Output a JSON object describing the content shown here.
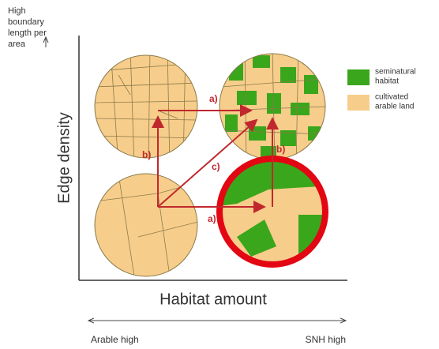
{
  "y_axis_note": [
    "High",
    "boundary",
    "length per",
    "area"
  ],
  "y_axis_title": "Edge density",
  "x_axis_title": "Habitat amount",
  "x_scale": {
    "left": "Arable high",
    "right": "SNH high"
  },
  "legend": [
    {
      "label": [
        "seminatural",
        "habitat"
      ],
      "color": "#3aa61c"
    },
    {
      "label": [
        "cultivated",
        "arable land"
      ],
      "color": "#f7cd8b"
    }
  ],
  "arrows": {
    "top_a": "a)",
    "left_b": "b)",
    "diag_c": "c)",
    "bottom_a": "a)",
    "right_b": "b)"
  }
}
